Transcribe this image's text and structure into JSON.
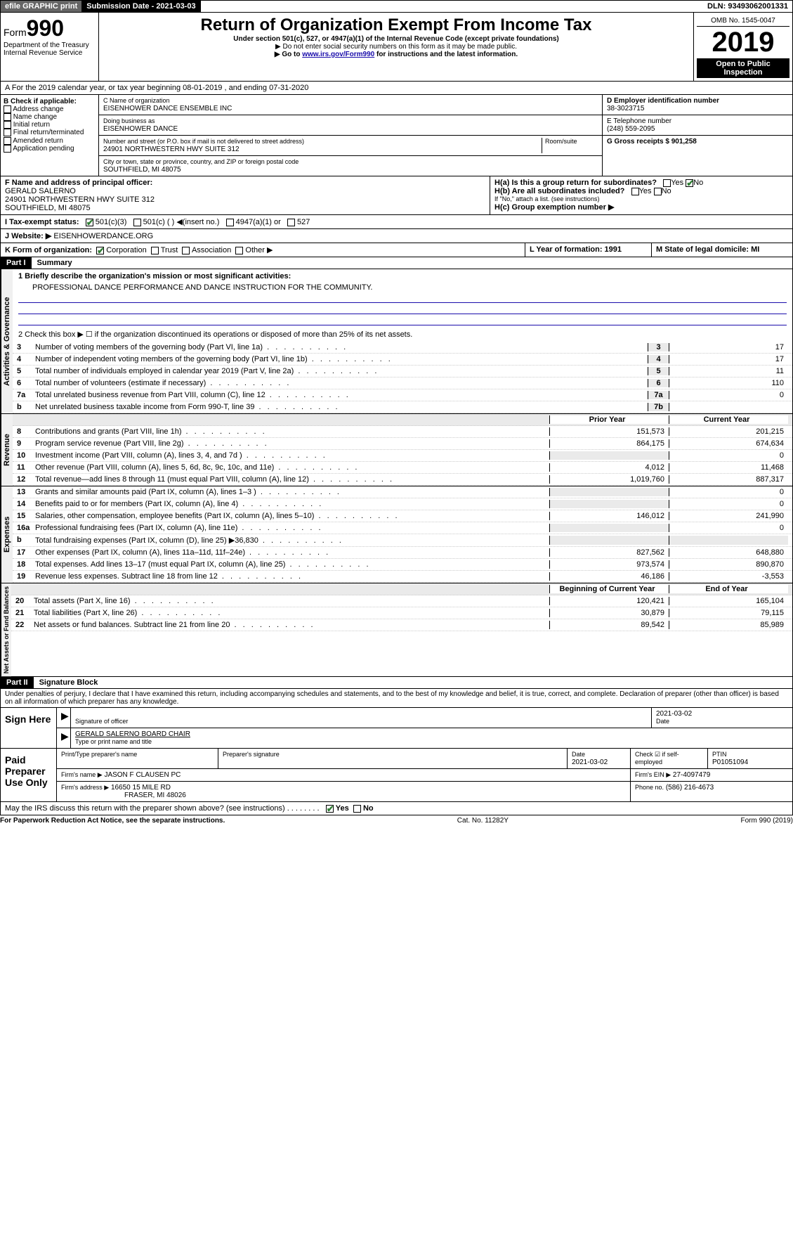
{
  "topbar": {
    "efile": "efile GRAPHIC print",
    "submission_label": "Submission Date - 2021-03-03",
    "dln": "DLN: 93493062001331"
  },
  "header": {
    "form_label": "Form",
    "form_number": "990",
    "dept": "Department of the Treasury",
    "irs": "Internal Revenue Service",
    "title": "Return of Organization Exempt From Income Tax",
    "subtitle": "Under section 501(c), 527, or 4947(a)(1) of the Internal Revenue Code (except private foundations)",
    "note1": "▶ Do not enter social security numbers on this form as it may be made public.",
    "note2_pre": "▶ Go to ",
    "note2_link": "www.irs.gov/Form990",
    "note2_post": " for instructions and the latest information.",
    "omb": "OMB No. 1545-0047",
    "year": "2019",
    "badge": "Open to Public Inspection"
  },
  "line_a": "A For the 2019 calendar year, or tax year beginning 08-01-2019  , and ending 07-31-2020",
  "box_b": {
    "label": "B Check if applicable:",
    "items": [
      "Address change",
      "Name change",
      "Initial return",
      "Final return/terminated",
      "Amended return",
      "Application pending"
    ]
  },
  "box_c": {
    "name_label": "C Name of organization",
    "name": "EISENHOWER DANCE ENSEMBLE INC",
    "dba_label": "Doing business as",
    "dba": "EISENHOWER DANCE",
    "addr_label": "Number and street (or P.O. box if mail is not delivered to street address)",
    "room_label": "Room/suite",
    "addr": "24901 NORTHWESTERN HWY SUITE 312",
    "city_label": "City or town, state or province, country, and ZIP or foreign postal code",
    "city": "SOUTHFIELD, MI  48075"
  },
  "box_d": {
    "label": "D Employer identification number",
    "value": "38-3023715"
  },
  "box_e": {
    "label": "E Telephone number",
    "value": "(248) 559-2095"
  },
  "box_g": {
    "label": "G Gross receipts $ 901,258"
  },
  "box_f": {
    "label": "F Name and address of principal officer:",
    "name": "GERALD SALERNO",
    "addr": "24901 NORTHWESTERN HWY SUITE 312",
    "city": "SOUTHFIELD, MI  48075"
  },
  "box_h": {
    "a": "H(a)  Is this a group return for subordinates?",
    "b": "H(b)  Are all subordinates included?",
    "note": "If \"No,\" attach a list. (see instructions)",
    "c": "H(c)  Group exemption number ▶"
  },
  "box_i": {
    "label": "I  Tax-exempt status:",
    "opts": [
      "501(c)(3)",
      "501(c) (  ) ◀(insert no.)",
      "4947(a)(1) or",
      "527"
    ]
  },
  "box_j": {
    "label": "J  Website: ▶",
    "value": "EISENHOWERDANCE.ORG"
  },
  "box_k": {
    "label": "K Form of organization:",
    "opts": [
      "Corporation",
      "Trust",
      "Association",
      "Other ▶"
    ]
  },
  "box_l": {
    "label": "L Year of formation: 1991"
  },
  "box_m": {
    "label": "M State of legal domicile: MI"
  },
  "part1": {
    "title": "Part I",
    "subtitle": "Summary",
    "line1_label": "1  Briefly describe the organization's mission or most significant activities:",
    "line1_text": "PROFESSIONAL DANCE PERFORMANCE AND DANCE INSTRUCTION FOR THE COMMUNITY.",
    "line2": "2  Check this box ▶ ☐  if the organization discontinued its operations or disposed of more than 25% of its net assets.",
    "governance_side": "Activities & Governance",
    "revenue_side": "Revenue",
    "expenses_side": "Expenses",
    "netassets_side": "Net Assets or Fund Balances",
    "gov_rows": [
      {
        "n": "3",
        "lbl": "Number of voting members of the governing body (Part VI, line 1a)",
        "box": "3",
        "val": "17"
      },
      {
        "n": "4",
        "lbl": "Number of independent voting members of the governing body (Part VI, line 1b)",
        "box": "4",
        "val": "17"
      },
      {
        "n": "5",
        "lbl": "Total number of individuals employed in calendar year 2019 (Part V, line 2a)",
        "box": "5",
        "val": "11"
      },
      {
        "n": "6",
        "lbl": "Total number of volunteers (estimate if necessary)",
        "box": "6",
        "val": "110"
      },
      {
        "n": "7a",
        "lbl": "Total unrelated business revenue from Part VIII, column (C), line 12",
        "box": "7a",
        "val": "0"
      },
      {
        "n": "b",
        "lbl": "Net unrelated business taxable income from Form 990-T, line 39",
        "box": "7b",
        "val": ""
      }
    ],
    "col_headers": {
      "prior": "Prior Year",
      "current": "Current Year"
    },
    "rev_rows": [
      {
        "n": "8",
        "lbl": "Contributions and grants (Part VIII, line 1h)",
        "prior": "151,573",
        "cur": "201,215"
      },
      {
        "n": "9",
        "lbl": "Program service revenue (Part VIII, line 2g)",
        "prior": "864,175",
        "cur": "674,634"
      },
      {
        "n": "10",
        "lbl": "Investment income (Part VIII, column (A), lines 3, 4, and 7d )",
        "prior": "",
        "cur": "0"
      },
      {
        "n": "11",
        "lbl": "Other revenue (Part VIII, column (A), lines 5, 6d, 8c, 9c, 10c, and 11e)",
        "prior": "4,012",
        "cur": "11,468"
      },
      {
        "n": "12",
        "lbl": "Total revenue—add lines 8 through 11 (must equal Part VIII, column (A), line 12)",
        "prior": "1,019,760",
        "cur": "887,317"
      }
    ],
    "exp_rows": [
      {
        "n": "13",
        "lbl": "Grants and similar amounts paid (Part IX, column (A), lines 1–3 )",
        "prior": "",
        "cur": "0"
      },
      {
        "n": "14",
        "lbl": "Benefits paid to or for members (Part IX, column (A), line 4)",
        "prior": "",
        "cur": "0"
      },
      {
        "n": "15",
        "lbl": "Salaries, other compensation, employee benefits (Part IX, column (A), lines 5–10)",
        "prior": "146,012",
        "cur": "241,990"
      },
      {
        "n": "16a",
        "lbl": "Professional fundraising fees (Part IX, column (A), line 11e)",
        "prior": "",
        "cur": "0"
      },
      {
        "n": "b",
        "lbl": "Total fundraising expenses (Part IX, column (D), line 25) ▶36,830",
        "prior": "",
        "cur": ""
      },
      {
        "n": "17",
        "lbl": "Other expenses (Part IX, column (A), lines 11a–11d, 11f–24e)",
        "prior": "827,562",
        "cur": "648,880"
      },
      {
        "n": "18",
        "lbl": "Total expenses. Add lines 13–17 (must equal Part IX, column (A), line 25)",
        "prior": "973,574",
        "cur": "890,870"
      },
      {
        "n": "19",
        "lbl": "Revenue less expenses. Subtract line 18 from line 12",
        "prior": "46,186",
        "cur": "-3,553"
      }
    ],
    "net_headers": {
      "begin": "Beginning of Current Year",
      "end": "End of Year"
    },
    "net_rows": [
      {
        "n": "20",
        "lbl": "Total assets (Part X, line 16)",
        "prior": "120,421",
        "cur": "165,104"
      },
      {
        "n": "21",
        "lbl": "Total liabilities (Part X, line 26)",
        "prior": "30,879",
        "cur": "79,115"
      },
      {
        "n": "22",
        "lbl": "Net assets or fund balances. Subtract line 21 from line 20",
        "prior": "89,542",
        "cur": "85,989"
      }
    ]
  },
  "part2": {
    "title": "Part II",
    "subtitle": "Signature Block",
    "declaration": "Under penalties of perjury, I declare that I have examined this return, including accompanying schedules and statements, and to the best of my knowledge and belief, it is true, correct, and complete. Declaration of preparer (other than officer) is based on all information of which preparer has any knowledge."
  },
  "sign": {
    "here": "Sign Here",
    "sig_officer": "Signature of officer",
    "date": "2021-03-02",
    "date_lbl": "Date",
    "name": "GERALD SALERNO  BOARD CHAIR",
    "name_lbl": "Type or print name and title"
  },
  "paid": {
    "label": "Paid Preparer Use Only",
    "h1": "Print/Type preparer's name",
    "h2": "Preparer's signature",
    "h3": "Date",
    "h3v": "2021-03-02",
    "h4": "Check ☑ if self-employed",
    "h5": "PTIN",
    "h5v": "P01051094",
    "firm_name_lbl": "Firm's name    ▶",
    "firm_name": "JASON F CLAUSEN PC",
    "firm_ein_lbl": "Firm's EIN ▶",
    "firm_ein": "27-4097479",
    "firm_addr_lbl": "Firm's address ▶",
    "firm_addr": "16650 15 MILE RD",
    "firm_city": "FRASER, MI  48026",
    "phone_lbl": "Phone no.",
    "phone": "(586) 216-4673"
  },
  "discuss": "May the IRS discuss this return with the preparer shown above? (see instructions)",
  "footer": {
    "left": "For Paperwork Reduction Act Notice, see the separate instructions.",
    "mid": "Cat. No. 11282Y",
    "right": "Form 990 (2019)"
  }
}
